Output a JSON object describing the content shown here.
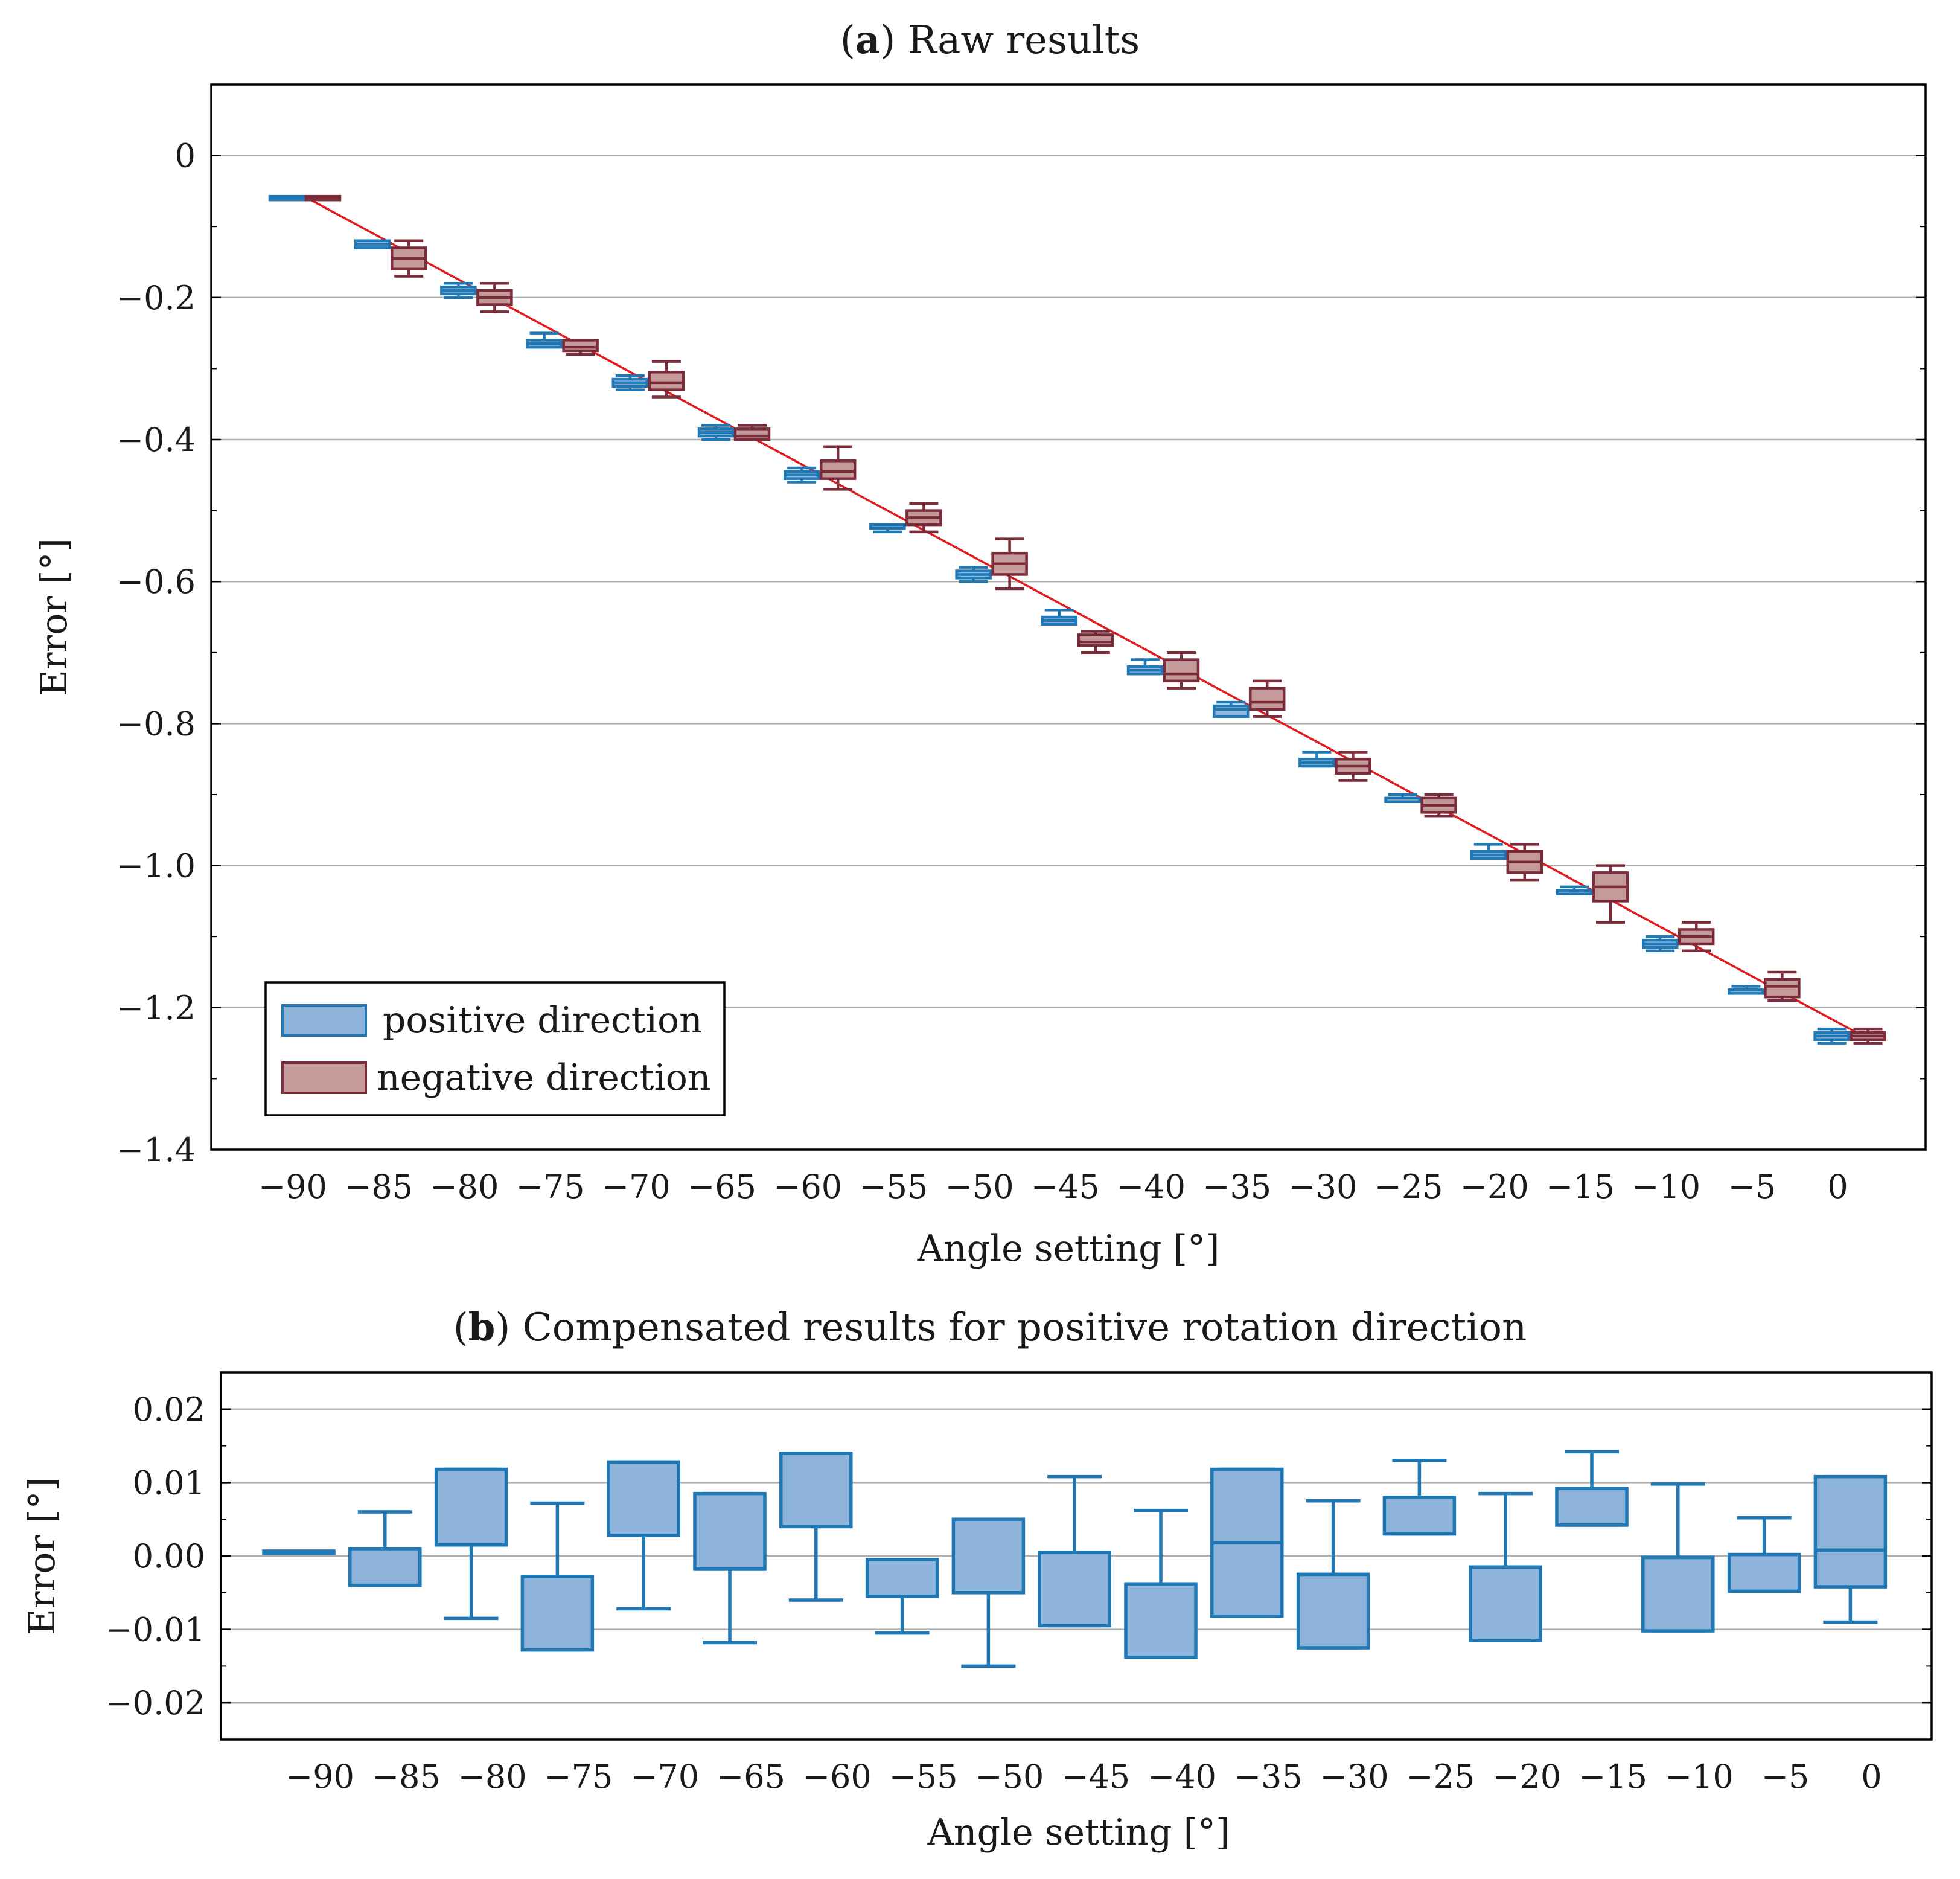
{
  "colors": {
    "positive_stroke": "#1f77b4",
    "positive_fill": "#8fb4db",
    "negative_stroke": "#7b2c3a",
    "negative_fill": "#c49a9b",
    "fit_line": "#e31a1c",
    "grid": "#b0b0b0",
    "axis": "#000000"
  },
  "chart_data": [
    {
      "type": "box",
      "title_bold": "a",
      "title_rest": "Raw results",
      "xlabel": "Angle setting [°]",
      "ylabel": "Error [°]",
      "ylim": [
        -1.4,
        0.1
      ],
      "yticks": [
        0,
        -0.2,
        -0.4,
        -0.6,
        -0.8,
        -1.0,
        -1.2,
        -1.4
      ],
      "ytick_labels": [
        "0",
        "−0.2",
        "−0.4",
        "−0.6",
        "−0.8",
        "−1.0",
        "−1.2",
        "−1.4"
      ],
      "categories": [
        "−90",
        "−85",
        "−80",
        "−75",
        "−70",
        "−65",
        "−60",
        "−55",
        "−50",
        "−45",
        "−40",
        "−35",
        "−30",
        "−25",
        "−20",
        "−15",
        "−10",
        "−5",
        "0"
      ],
      "x": [
        -90,
        -85,
        -80,
        -75,
        -70,
        -65,
        -60,
        -55,
        -50,
        -45,
        -40,
        -35,
        -30,
        -25,
        -20,
        -15,
        -10,
        -5,
        0
      ],
      "legend": {
        "position": "lower-left",
        "entries": [
          "positive direction",
          "negative direction"
        ]
      },
      "fit_line": {
        "x": [
          -89.5,
          1.5
        ],
        "y": [
          -0.06,
          -1.245
        ]
      },
      "series": [
        {
          "name": "positive direction",
          "boxes": [
            {
              "min": -0.06,
              "q1": -0.06,
              "med": -0.06,
              "q3": -0.06,
              "max": -0.06
            },
            {
              "min": -0.13,
              "q1": -0.13,
              "med": -0.125,
              "q3": -0.12,
              "max": -0.12
            },
            {
              "min": -0.2,
              "q1": -0.195,
              "med": -0.19,
              "q3": -0.185,
              "max": -0.18
            },
            {
              "min": -0.27,
              "q1": -0.27,
              "med": -0.265,
              "q3": -0.26,
              "max": -0.25
            },
            {
              "min": -0.33,
              "q1": -0.325,
              "med": -0.32,
              "q3": -0.315,
              "max": -0.31
            },
            {
              "min": -0.4,
              "q1": -0.395,
              "med": -0.39,
              "q3": -0.385,
              "max": -0.38
            },
            {
              "min": -0.46,
              "q1": -0.455,
              "med": -0.45,
              "q3": -0.445,
              "max": -0.44
            },
            {
              "min": -0.53,
              "q1": -0.525,
              "med": -0.52,
              "q3": -0.52,
              "max": -0.52
            },
            {
              "min": -0.6,
              "q1": -0.595,
              "med": -0.59,
              "q3": -0.585,
              "max": -0.58
            },
            {
              "min": -0.66,
              "q1": -0.66,
              "med": -0.655,
              "q3": -0.65,
              "max": -0.64
            },
            {
              "min": -0.73,
              "q1": -0.73,
              "med": -0.725,
              "q3": -0.72,
              "max": -0.71
            },
            {
              "min": -0.79,
              "q1": -0.79,
              "med": -0.78,
              "q3": -0.775,
              "max": -0.77
            },
            {
              "min": -0.86,
              "q1": -0.86,
              "med": -0.855,
              "q3": -0.85,
              "max": -0.84
            },
            {
              "min": -0.91,
              "q1": -0.91,
              "med": -0.905,
              "q3": -0.905,
              "max": -0.9
            },
            {
              "min": -0.99,
              "q1": -0.99,
              "med": -0.985,
              "q3": -0.98,
              "max": -0.97
            },
            {
              "min": -1.04,
              "q1": -1.04,
              "med": -1.035,
              "q3": -1.035,
              "max": -1.03
            },
            {
              "min": -1.12,
              "q1": -1.115,
              "med": -1.11,
              "q3": -1.105,
              "max": -1.1
            },
            {
              "min": -1.18,
              "q1": -1.18,
              "med": -1.175,
              "q3": -1.175,
              "max": -1.17
            },
            {
              "min": -1.25,
              "q1": -1.245,
              "med": -1.24,
              "q3": -1.235,
              "max": -1.23
            }
          ]
        },
        {
          "name": "negative direction",
          "boxes": [
            {
              "min": -0.06,
              "q1": -0.06,
              "med": -0.06,
              "q3": -0.06,
              "max": -0.06
            },
            {
              "min": -0.17,
              "q1": -0.16,
              "med": -0.145,
              "q3": -0.13,
              "max": -0.12
            },
            {
              "min": -0.22,
              "q1": -0.21,
              "med": -0.2,
              "q3": -0.19,
              "max": -0.18
            },
            {
              "min": -0.28,
              "q1": -0.275,
              "med": -0.27,
              "q3": -0.26,
              "max": -0.26
            },
            {
              "min": -0.34,
              "q1": -0.33,
              "med": -0.32,
              "q3": -0.305,
              "max": -0.29
            },
            {
              "min": -0.4,
              "q1": -0.4,
              "med": -0.395,
              "q3": -0.385,
              "max": -0.38
            },
            {
              "min": -0.47,
              "q1": -0.455,
              "med": -0.445,
              "q3": -0.43,
              "max": -0.41
            },
            {
              "min": -0.53,
              "q1": -0.52,
              "med": -0.51,
              "q3": -0.5,
              "max": -0.49
            },
            {
              "min": -0.61,
              "q1": -0.59,
              "med": -0.575,
              "q3": -0.56,
              "max": -0.54
            },
            {
              "min": -0.7,
              "q1": -0.69,
              "med": -0.685,
              "q3": -0.675,
              "max": -0.67
            },
            {
              "min": -0.75,
              "q1": -0.74,
              "med": -0.73,
              "q3": -0.71,
              "max": -0.7
            },
            {
              "min": -0.79,
              "q1": -0.78,
              "med": -0.77,
              "q3": -0.75,
              "max": -0.74
            },
            {
              "min": -0.88,
              "q1": -0.87,
              "med": -0.86,
              "q3": -0.85,
              "max": -0.84
            },
            {
              "min": -0.93,
              "q1": -0.925,
              "med": -0.915,
              "q3": -0.905,
              "max": -0.9
            },
            {
              "min": -1.02,
              "q1": -1.01,
              "med": -0.995,
              "q3": -0.98,
              "max": -0.97
            },
            {
              "min": -1.08,
              "q1": -1.05,
              "med": -1.03,
              "q3": -1.01,
              "max": -1.0
            },
            {
              "min": -1.12,
              "q1": -1.11,
              "med": -1.1,
              "q3": -1.09,
              "max": -1.08
            },
            {
              "min": -1.19,
              "q1": -1.185,
              "med": -1.17,
              "q3": -1.16,
              "max": -1.15
            },
            {
              "min": -1.25,
              "q1": -1.245,
              "med": -1.24,
              "q3": -1.235,
              "max": -1.23
            }
          ]
        }
      ]
    },
    {
      "type": "box",
      "title_bold": "b",
      "title_rest": "Compensated results for positive rotation direction",
      "xlabel": "Angle setting [°]",
      "ylabel": "Error [°]",
      "ylim": [
        -0.025,
        0.025
      ],
      "yticks": [
        0.02,
        0.01,
        0.0,
        -0.01,
        -0.02
      ],
      "ytick_labels": [
        "0.02",
        "0.01",
        "0.00",
        "−0.01",
        "−0.02"
      ],
      "categories": [
        "−90",
        "−85",
        "−80",
        "−75",
        "−70",
        "−65",
        "−60",
        "−55",
        "−50",
        "−45",
        "−40",
        "−35",
        "−30",
        "−25",
        "−20",
        "−15",
        "−10",
        "−5",
        "0"
      ],
      "x": [
        -90,
        -85,
        -80,
        -75,
        -70,
        -65,
        -60,
        -55,
        -50,
        -45,
        -40,
        -35,
        -30,
        -25,
        -20,
        -15,
        -10,
        -5,
        0
      ],
      "series": [
        {
          "name": "positive direction",
          "boxes": [
            {
              "min": 0.0005,
              "q1": 0.0005,
              "med": 0.0005,
              "q3": 0.0005,
              "max": 0.0005
            },
            {
              "min": -0.004,
              "q1": -0.004,
              "med": 0.001,
              "q3": 0.001,
              "max": 0.006
            },
            {
              "min": -0.0085,
              "q1": 0.0015,
              "med": 0.0015,
              "q3": 0.0118,
              "max": 0.0118
            },
            {
              "min": -0.0128,
              "q1": -0.0128,
              "med": -0.0028,
              "q3": -0.0028,
              "max": 0.0072
            },
            {
              "min": -0.0072,
              "q1": 0.0028,
              "med": 0.0028,
              "q3": 0.0128,
              "max": 0.0128
            },
            {
              "min": -0.0118,
              "q1": -0.0018,
              "med": -0.0018,
              "q3": 0.0085,
              "max": 0.0085
            },
            {
              "min": -0.006,
              "q1": 0.004,
              "med": 0.004,
              "q3": 0.014,
              "max": 0.014
            },
            {
              "min": -0.0105,
              "q1": -0.0055,
              "med": -0.0055,
              "q3": -0.0005,
              "max": -0.0005
            },
            {
              "min": -0.015,
              "q1": -0.005,
              "med": -0.005,
              "q3": 0.005,
              "max": 0.005
            },
            {
              "min": -0.0095,
              "q1": -0.0095,
              "med": 0.0005,
              "q3": 0.0005,
              "max": 0.0108
            },
            {
              "min": -0.0138,
              "q1": -0.0138,
              "med": -0.0038,
              "q3": -0.0038,
              "max": 0.0062
            },
            {
              "min": -0.0082,
              "q1": -0.0082,
              "med": 0.0018,
              "q3": 0.0118,
              "max": 0.0118
            },
            {
              "min": -0.0125,
              "q1": -0.0125,
              "med": -0.0025,
              "q3": -0.0025,
              "max": 0.0075
            },
            {
              "min": 0.003,
              "q1": 0.003,
              "med": 0.003,
              "q3": 0.008,
              "max": 0.013
            },
            {
              "min": -0.0115,
              "q1": -0.0115,
              "med": -0.0015,
              "q3": -0.0015,
              "max": 0.0085
            },
            {
              "min": 0.0042,
              "q1": 0.0042,
              "med": 0.0042,
              "q3": 0.0092,
              "max": 0.0142
            },
            {
              "min": -0.0102,
              "q1": -0.0102,
              "med": -0.0002,
              "q3": -0.0002,
              "max": 0.0098
            },
            {
              "min": -0.0048,
              "q1": -0.0048,
              "med": 0.0002,
              "q3": 0.0002,
              "max": 0.0052
            },
            {
              "min": -0.009,
              "q1": -0.0042,
              "med": 0.0008,
              "q3": 0.0108,
              "max": 0.0108
            }
          ]
        }
      ]
    }
  ]
}
